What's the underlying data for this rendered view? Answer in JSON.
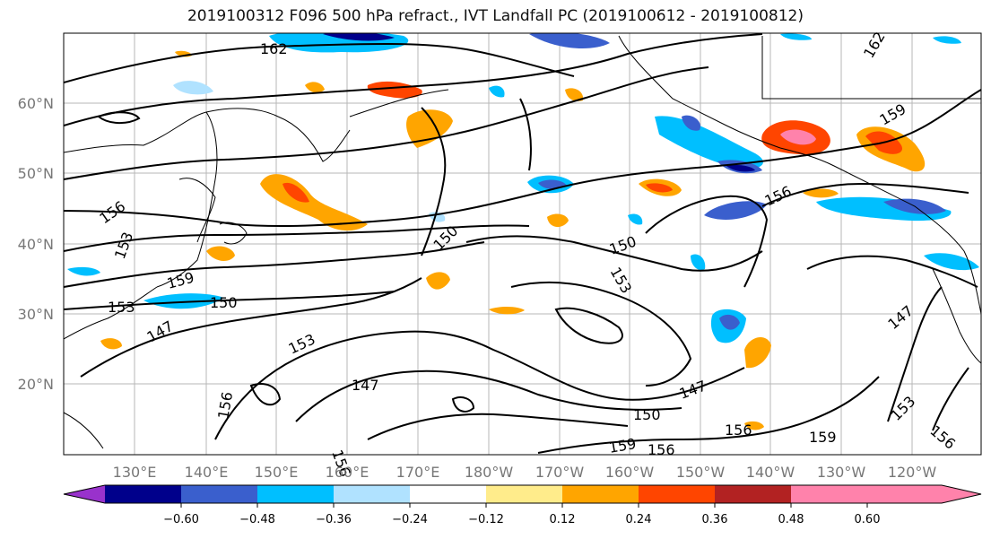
{
  "title": "2019100312 F096 500 hPa refract., IVT Landfall PC (2019100612 - 2019100812)",
  "lat_labels": [
    "60°N",
    "50°N",
    "40°N",
    "30°N",
    "20°N"
  ],
  "lon_labels": [
    "130°E",
    "140°E",
    "150°E",
    "160°E",
    "170°E",
    "180°W",
    "170°W",
    "160°W",
    "150°W",
    "140°W",
    "130°W",
    "120°W"
  ],
  "contour_labels": [
    "162",
    "156",
    "153",
    "159",
    "153",
    "150",
    "147",
    "153",
    "156",
    "150",
    "150",
    "153",
    "147",
    "150",
    "147",
    "156",
    "159",
    "156",
    "156",
    "159",
    "147",
    "153",
    "156",
    "159",
    "162",
    "156"
  ],
  "colorbar": {
    "ticks": [
      "−0.60",
      "−0.48",
      "−0.36",
      "−0.24",
      "−0.12",
      "0.12",
      "0.24",
      "0.36",
      "0.48",
      "0.60"
    ],
    "colors": [
      "#9932cc",
      "#00008b",
      "#3a5fcd",
      "#00bfff",
      "#b0e2ff",
      "#ffffff",
      "#ffec8b",
      "#ffa500",
      "#ff4500",
      "#b22222",
      "#ff82ab"
    ]
  }
}
